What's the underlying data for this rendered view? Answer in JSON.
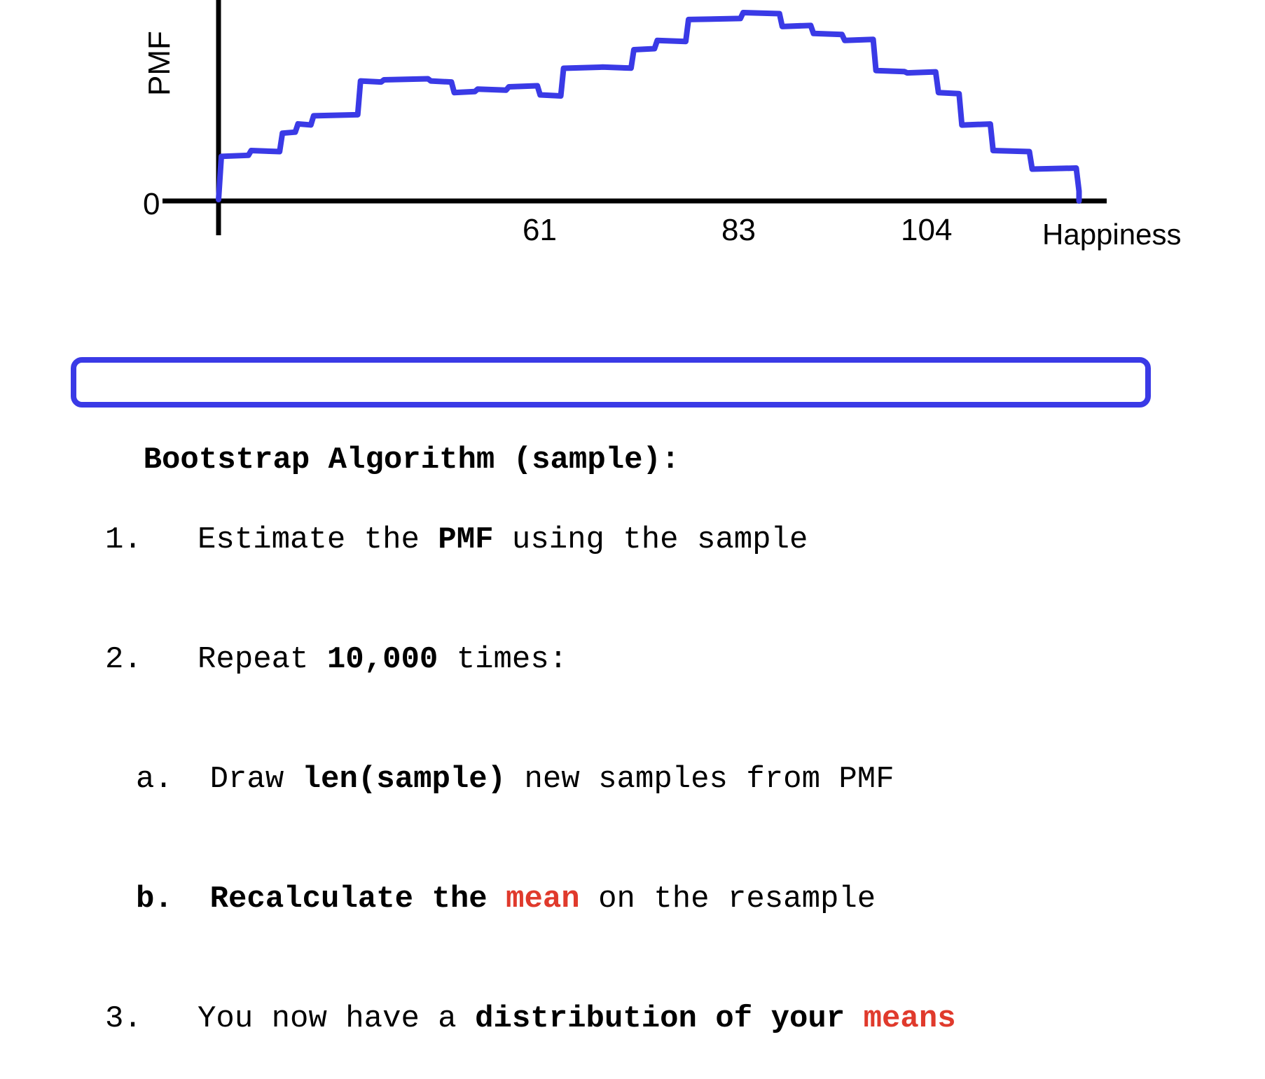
{
  "chart_data": {
    "type": "line",
    "ylabel": "PMF",
    "xlabel": "Happiness",
    "y_tick": "0",
    "x_ticks": [
      "61",
      "83",
      "104"
    ],
    "series": [
      {
        "color": "#3a3ae6",
        "steps": [
          [
            14,
            3
          ],
          [
            18,
            3.5
          ],
          [
            22,
            5
          ],
          [
            24,
            5.8
          ],
          [
            26,
            6.5
          ],
          [
            32,
            9.5
          ],
          [
            35,
            9.6
          ],
          [
            41,
            9.5
          ],
          [
            44,
            8.5
          ],
          [
            47,
            8.8
          ],
          [
            51,
            9
          ],
          [
            55,
            8.3
          ],
          [
            58,
            10.6
          ],
          [
            63,
            10.7
          ],
          [
            67,
            12.2
          ],
          [
            70,
            13
          ],
          [
            74,
            14.8
          ],
          [
            81,
            15.4
          ],
          [
            86,
            14.2
          ],
          [
            90,
            13.6
          ],
          [
            94,
            13
          ],
          [
            98,
            10.4
          ],
          [
            102,
            10.2
          ],
          [
            106,
            8.5
          ],
          [
            109,
            5.7
          ],
          [
            113,
            3.5
          ],
          [
            118,
            1.9
          ],
          [
            124,
            0
          ]
        ]
      }
    ],
    "grid": false
  },
  "algorithm": {
    "title": "Bootstrap Algorithm (sample):",
    "step1": {
      "num": "1.",
      "pre": "Estimate the ",
      "bold": "PMF",
      "post": " using the sample"
    },
    "step2": {
      "num": "2.",
      "pre": "Repeat ",
      "bold": "10,000",
      "post": " times:"
    },
    "step2a": {
      "num": "a.",
      "pre": "Draw ",
      "bold": "len(sample)",
      "post": " new samples from PMF"
    },
    "step2b": {
      "num": "b.",
      "bold": "Recalculate the ",
      "red": "mean",
      "post": " on the resample"
    },
    "step3": {
      "num": "3.",
      "pre": "You now have a ",
      "bold": "distribution of your ",
      "red": "means"
    }
  },
  "colors": {
    "accent": "#3a3ae6",
    "highlight": "#e03a2c"
  }
}
